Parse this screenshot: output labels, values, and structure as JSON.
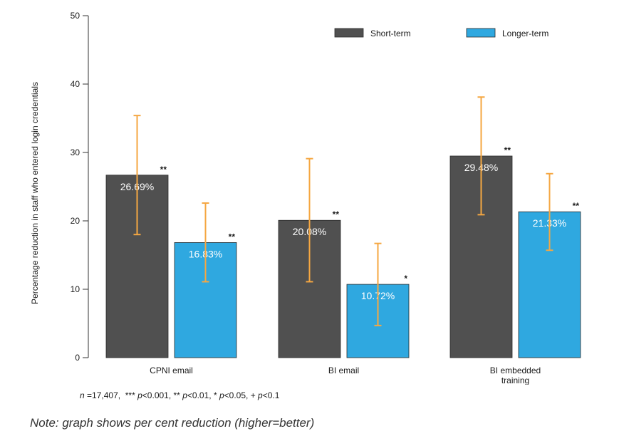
{
  "chart_data": {
    "type": "bar",
    "ylabel": "Percentage reduction in staff who entered login credentials",
    "ylim": [
      0,
      50
    ],
    "yticks": [
      0,
      10,
      20,
      30,
      40,
      50
    ],
    "categories": [
      "CPNI email",
      "BI email",
      "BI embedded training"
    ],
    "category_label_lines": [
      [
        "CPNI email"
      ],
      [
        "BI email"
      ],
      [
        "BI embedded",
        "training"
      ]
    ],
    "legend_position": "top-right",
    "grid": false,
    "series": [
      {
        "name": "Short-term",
        "color": "#505050",
        "values": [
          26.69,
          20.08,
          29.48
        ],
        "labels": [
          "26.69%",
          "20.08%",
          "29.48%"
        ],
        "error_low": [
          18.0,
          11.1,
          20.9
        ],
        "error_high": [
          35.4,
          29.1,
          38.1
        ],
        "significance": [
          "**",
          "**",
          "**"
        ]
      },
      {
        "name": "Longer-term",
        "color": "#2fa8e0",
        "values": [
          16.83,
          10.72,
          21.33
        ],
        "labels": [
          "16.83%",
          "10.72%",
          "21.33%"
        ],
        "error_low": [
          11.1,
          4.7,
          15.7
        ],
        "error_high": [
          22.6,
          16.7,
          26.9
        ],
        "significance": [
          "**",
          "*",
          "**"
        ]
      }
    ],
    "error_bar_color": "#f5a742"
  },
  "footnote": {
    "n_symbol": "n",
    "n_text": "=17,407,",
    "sig3": "***",
    "sig2": "**",
    "sig1": "*",
    "sig0": "+",
    "p_symbol": "p",
    "p3": "<0.001,",
    "p2": "<0.01,",
    "p1": "<0.05,",
    "p0": "<0.1"
  },
  "note": "Note: graph shows per cent reduction (higher=better)"
}
